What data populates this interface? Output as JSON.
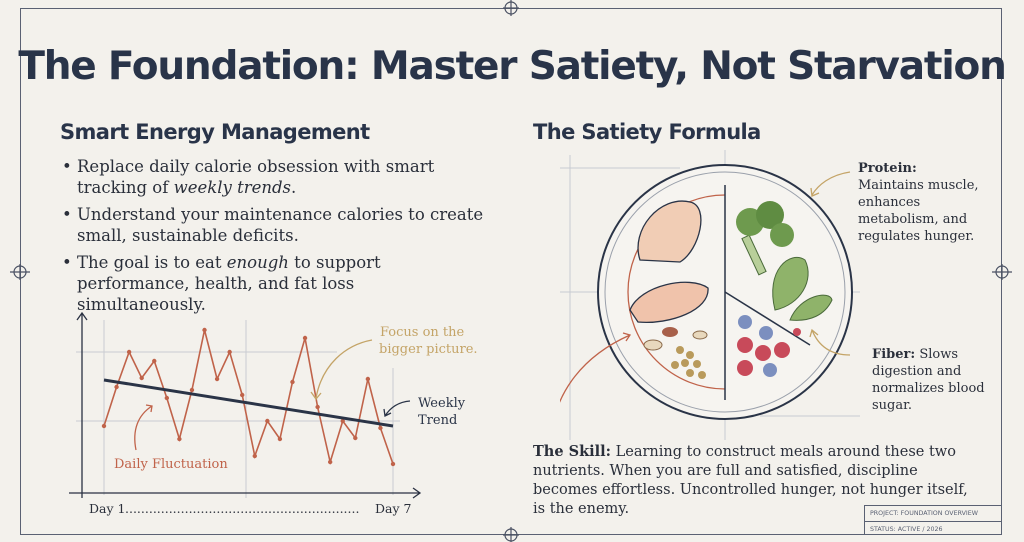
{
  "title": "The Foundation: Master Satiety, Not Starvation",
  "left": {
    "heading": "Smart Energy Management",
    "bullets": [
      {
        "before": "Replace daily calorie obsession with smart tracking of ",
        "em": "weekly trends",
        "after": "."
      },
      {
        "before": "Understand your maintenance calories to create small, sustainable deficits.",
        "em": "",
        "after": ""
      },
      {
        "before": "The goal is to eat ",
        "em": "enough",
        "after": " to support performance, health, and fat loss simultaneously."
      }
    ]
  },
  "chart_data": {
    "type": "line",
    "x_start_label": "Day 1",
    "x_end_label": "Day 7",
    "grid": true,
    "series": [
      {
        "name": "Daily Fluctuation",
        "color": "#c0634a",
        "values": [
          69,
          108,
          143,
          117,
          134,
          97,
          56,
          105,
          165,
          116,
          143,
          100,
          39,
          74,
          56,
          113,
          157,
          88,
          33,
          74,
          57,
          116,
          67,
          31
        ]
      },
      {
        "name": "Weekly Trend",
        "color": "#2a3447",
        "values": [
          115,
          69
        ]
      }
    ],
    "annotations": {
      "daily": "Daily Fluctuation",
      "weekly": [
        "Weekly",
        "Trend"
      ],
      "focus": [
        "Focus on the",
        "bigger picture."
      ]
    }
  },
  "right": {
    "heading": "The Satiety Formula",
    "protein": {
      "label": "Protein:",
      "text": "Maintains muscle, enhances metabolism, and regulates hunger."
    },
    "fiber": {
      "label": "Fiber:",
      "text": "Slows digestion and normalizes blood sugar."
    },
    "skill": {
      "label": "The Skill:",
      "text": "Learning to construct meals around these two nutrients. When you are full and satisfied, discipline becomes effortless. Uncontrolled hunger, not hunger itself, is the enemy."
    }
  },
  "stamp": {
    "line1": "PROJECT: FOUNDATION OVERVIEW",
    "line2": "STATUS: ACTIVE / 2026"
  },
  "colors": {
    "navy": "#293449",
    "rust": "#c0634a",
    "gold": "#c4a467",
    "background": "#f3f1ec"
  }
}
